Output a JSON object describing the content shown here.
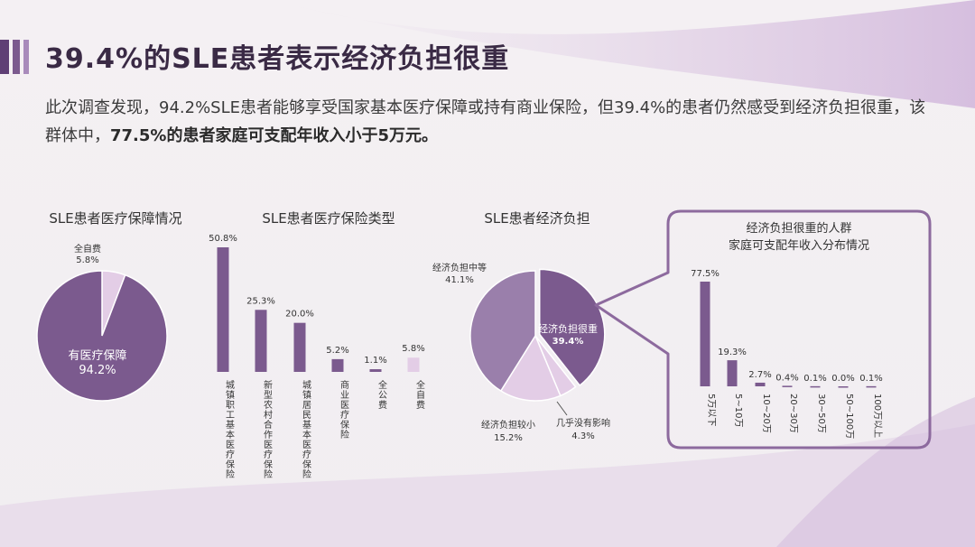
{
  "header": {
    "title": "39.4%的SLE患者表示经济负担很重",
    "summary_part1": "此次调查发现，94.2%SLE患者能够享受国家基本医疗保障或持有商业保险，但39.4%的患者仍然感受到经济负担很重，该群体中，",
    "summary_bold": "77.5%的患者家庭可支配年收入小于5万元。"
  },
  "colors": {
    "dark": "#7b5a8e",
    "mid": "#9a7fab",
    "light": "#e3cde6",
    "accent": "#b89ac4",
    "frame": "#8d6a9e"
  },
  "chart_data": [
    {
      "type": "pie",
      "title": "SLE患者医疗保障情况",
      "slices": [
        {
          "label": "有医疗保障",
          "value": 94.2,
          "display": "94.2%"
        },
        {
          "label": "全自费",
          "value": 5.8,
          "display": "5.8%"
        }
      ]
    },
    {
      "type": "bar",
      "title": "SLE患者医疗保险类型",
      "categories": [
        "城镇职工基本医疗保险",
        "新型农村合作医疗保险",
        "城镇居民基本医疗保险",
        "商业医疗保险",
        "全公费",
        "全自费"
      ],
      "values": [
        50.8,
        25.3,
        20.0,
        5.2,
        1.1,
        5.8
      ],
      "labels": [
        "50.8%",
        "25.3%",
        "20.0%",
        "5.2%",
        "1.1%",
        "5.8%"
      ],
      "ylim": [
        0,
        55
      ]
    },
    {
      "type": "pie",
      "title": "SLE患者经济负担",
      "slices": [
        {
          "label": "经济负担很重",
          "value": 39.4,
          "display": "39.4%"
        },
        {
          "label": "几乎没有影响",
          "value": 4.3,
          "display": "4.3%"
        },
        {
          "label": "经济负担较小",
          "value": 15.2,
          "display": "15.2%"
        },
        {
          "label": "经济负担中等",
          "value": 41.1,
          "display": "41.1%"
        }
      ]
    },
    {
      "type": "bar",
      "title_line1": "经济负担很重的人群",
      "title_line2": "家庭可支配年收入分布情况",
      "categories": [
        "5万以下",
        "5~10万",
        "10~20万",
        "20~30万",
        "30~50万",
        "50~100万",
        "100万以上"
      ],
      "values": [
        77.5,
        19.3,
        2.7,
        0.4,
        0.1,
        0.0,
        0.1
      ],
      "labels": [
        "77.5%",
        "19.3%",
        "2.7%",
        "0.4%",
        "0.1%",
        "0.0%",
        "0.1%"
      ],
      "ylim": [
        0,
        80
      ]
    }
  ]
}
